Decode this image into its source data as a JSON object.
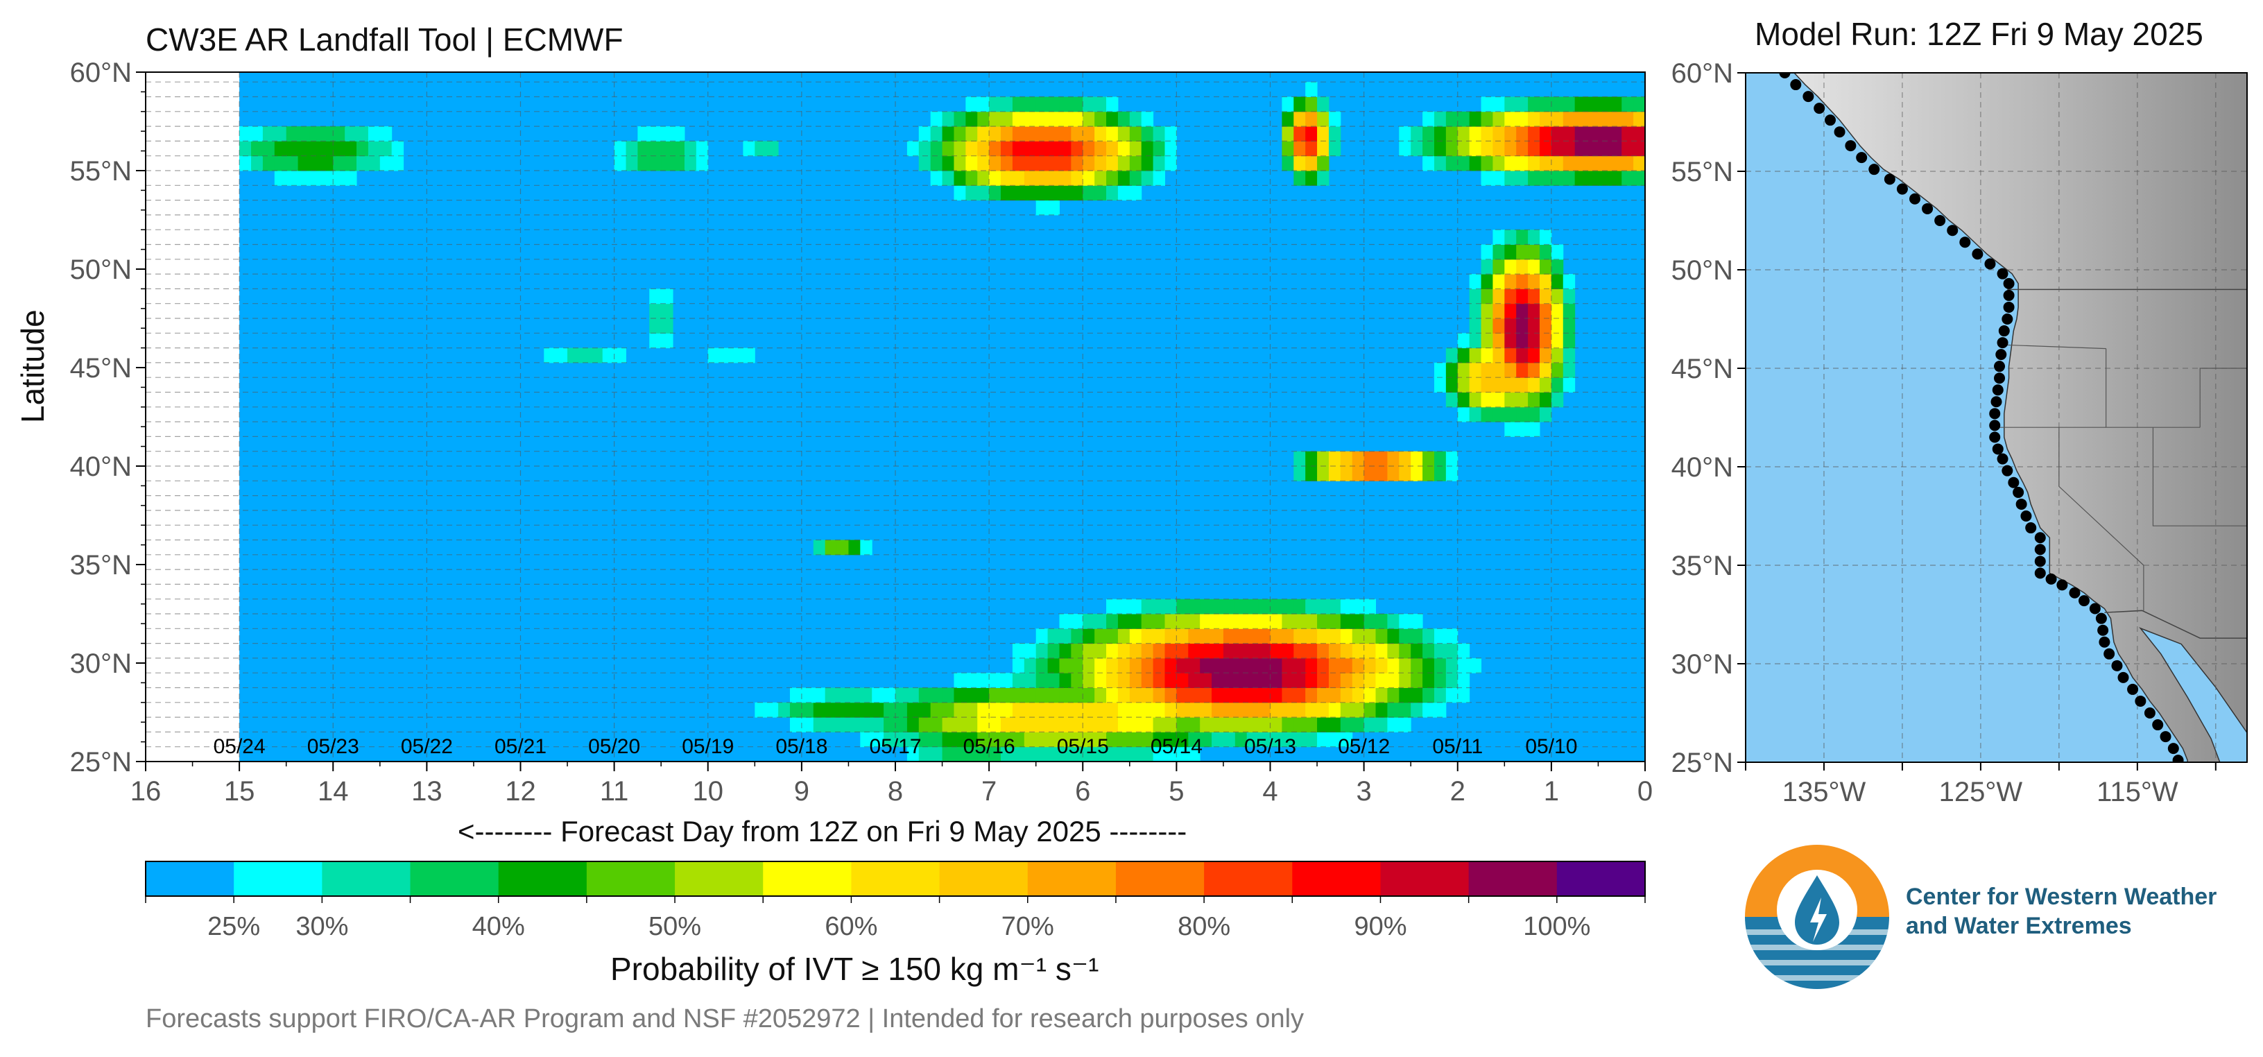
{
  "header": {
    "title": "CW3E AR Landfall Tool | ECMWF",
    "model_run": "Model Run: 12Z Fri 9 May 2025"
  },
  "axes": {
    "ylabel": "Latitude",
    "xlabel": "<-------- Forecast Day from 12Z on Fri 9 May 2025 --------",
    "colorbar_label": "Probability of IVT ≥ 150 kg m⁻¹ s⁻¹"
  },
  "footer": "Forecasts support FIRO/CA-AR Program and NSF #2052972 | Intended for research purposes only",
  "logo": {
    "line1": "Center for Western Weather",
    "line2": "and Water Extremes"
  },
  "chart_data": [
    {
      "type": "heatmap",
      "title": "CW3E AR Landfall Tool | ECMWF",
      "xlabel": "<-------- Forecast Day from 12Z on Fri 9 May 2025 --------",
      "ylabel": "Latitude",
      "xlim": [
        16,
        0
      ],
      "ylim": [
        25,
        60
      ],
      "x_ticks": [
        16,
        15,
        14,
        13,
        12,
        11,
        10,
        9,
        8,
        7,
        6,
        5,
        4,
        3,
        2,
        1,
        0
      ],
      "y_ticks": [
        "25°N",
        "30°N",
        "35°N",
        "40°N",
        "45°N",
        "50°N",
        "55°N",
        "60°N"
      ],
      "date_labels": [
        {
          "day": 15,
          "label": "05/24"
        },
        {
          "day": 14,
          "label": "05/23"
        },
        {
          "day": 13,
          "label": "05/22"
        },
        {
          "day": 12,
          "label": "05/21"
        },
        {
          "day": 11,
          "label": "05/20"
        },
        {
          "day": 10,
          "label": "05/19"
        },
        {
          "day": 9,
          "label": "05/18"
        },
        {
          "day": 8,
          "label": "05/17"
        },
        {
          "day": 7,
          "label": "05/16"
        },
        {
          "day": 6,
          "label": "05/15"
        },
        {
          "day": 5,
          "label": "05/14"
        },
        {
          "day": 4,
          "label": "05/13"
        },
        {
          "day": 3,
          "label": "05/12"
        },
        {
          "day": 2,
          "label": "05/11"
        },
        {
          "day": 1,
          "label": "05/10"
        }
      ],
      "background_probability": 20,
      "blobs": [
        {
          "day": 14.2,
          "lat": 56.0,
          "sx": 0.9,
          "sy": 1.4,
          "peak": 45
        },
        {
          "day": 10.5,
          "lat": 55.8,
          "sx": 0.6,
          "sy": 1.2,
          "peak": 40
        },
        {
          "day": 9.4,
          "lat": 56.0,
          "sx": 0.3,
          "sy": 0.8,
          "peak": 32
        },
        {
          "day": 6.4,
          "lat": 56.0,
          "sx": 0.9,
          "sy": 1.8,
          "peak": 90
        },
        {
          "day": 3.6,
          "lat": 56.6,
          "sx": 0.2,
          "sy": 1.6,
          "peak": 90
        },
        {
          "day": 0.5,
          "lat": 56.5,
          "sx": 1.3,
          "sy": 1.4,
          "peak": 100
        },
        {
          "day": 1.3,
          "lat": 47.0,
          "sx": 0.35,
          "sy": 3.2,
          "peak": 100
        },
        {
          "day": 1.6,
          "lat": 44.5,
          "sx": 0.45,
          "sy": 1.6,
          "peak": 72
        },
        {
          "day": 2.9,
          "lat": 40.0,
          "sx": 0.6,
          "sy": 0.7,
          "peak": 88
        },
        {
          "day": 11.3,
          "lat": 45.5,
          "sx": 0.7,
          "sy": 0.6,
          "peak": 32
        },
        {
          "day": 10.5,
          "lat": 47.5,
          "sx": 0.2,
          "sy": 1.8,
          "peak": 35
        },
        {
          "day": 9.8,
          "lat": 45.6,
          "sx": 0.4,
          "sy": 0.4,
          "peak": 30
        },
        {
          "day": 8.6,
          "lat": 35.9,
          "sx": 0.25,
          "sy": 0.4,
          "peak": 50
        },
        {
          "day": 4.3,
          "lat": 29.6,
          "sx": 1.5,
          "sy": 2.4,
          "peak": 100
        },
        {
          "day": 6.2,
          "lat": 27.2,
          "sx": 1.8,
          "sy": 1.6,
          "peak": 65
        },
        {
          "day": 8.5,
          "lat": 27.6,
          "sx": 0.9,
          "sy": 0.9,
          "peak": 45
        },
        {
          "day": 7.2,
          "lat": 25.6,
          "sx": 0.7,
          "sy": 0.7,
          "peak": 42
        }
      ]
    },
    {
      "type": "colorbar",
      "label": "Probability of IVT ≥ 150 kg m⁻¹ s⁻¹",
      "colors": [
        "#00aaff",
        "#00ffff",
        "#00e0aa",
        "#00cc55",
        "#00aa00",
        "#55cc00",
        "#aae000",
        "#ffff00",
        "#ffe000",
        "#ffc800",
        "#ffa500",
        "#ff7800",
        "#ff3c00",
        "#ff0000",
        "#cc0022",
        "#8c0050",
        "#550088"
      ],
      "tick_labels": [
        "25%",
        "30%",
        "40%",
        "50%",
        "60%",
        "70%",
        "80%",
        "90%",
        "100%"
      ],
      "tick_values": [
        25,
        30,
        40,
        50,
        60,
        70,
        80,
        90,
        100
      ]
    },
    {
      "type": "map",
      "lon_ticks": [
        "135°W",
        "125°W",
        "115°W"
      ],
      "lat_ticks": [
        "25°N",
        "30°N",
        "35°N",
        "40°N",
        "45°N",
        "50°N",
        "55°N",
        "60°N"
      ],
      "ocean_color": "#87cbf5",
      "landfall_points": [
        [
          -137.5,
          60.0
        ],
        [
          -136.8,
          59.4
        ],
        [
          -136.0,
          58.8
        ],
        [
          -135.3,
          58.2
        ],
        [
          -134.6,
          57.6
        ],
        [
          -134.0,
          57.0
        ],
        [
          -133.3,
          56.3
        ],
        [
          -132.6,
          55.7
        ],
        [
          -131.8,
          55.1
        ],
        [
          -130.8,
          54.6
        ],
        [
          -130.0,
          54.1
        ],
        [
          -129.2,
          53.6
        ],
        [
          -128.4,
          53.1
        ],
        [
          -127.6,
          52.5
        ],
        [
          -126.8,
          52.0
        ],
        [
          -126.0,
          51.4
        ],
        [
          -125.2,
          50.8
        ],
        [
          -124.4,
          50.3
        ],
        [
          -123.6,
          49.8
        ],
        [
          -123.2,
          49.3
        ],
        [
          -123.2,
          48.7
        ],
        [
          -123.2,
          48.1
        ],
        [
          -123.3,
          47.5
        ],
        [
          -123.5,
          46.9
        ],
        [
          -123.6,
          46.3
        ],
        [
          -123.7,
          45.7
        ],
        [
          -123.8,
          45.1
        ],
        [
          -123.8,
          44.5
        ],
        [
          -123.9,
          43.9
        ],
        [
          -124.0,
          43.3
        ],
        [
          -124.1,
          42.7
        ],
        [
          -124.1,
          42.1
        ],
        [
          -124.1,
          41.5
        ],
        [
          -123.9,
          40.9
        ],
        [
          -123.6,
          40.4
        ],
        [
          -123.3,
          39.8
        ],
        [
          -122.9,
          39.2
        ],
        [
          -122.6,
          38.7
        ],
        [
          -122.4,
          38.1
        ],
        [
          -122.1,
          37.5
        ],
        [
          -121.8,
          36.9
        ],
        [
          -121.2,
          36.4
        ],
        [
          -121.2,
          35.8
        ],
        [
          -121.2,
          35.2
        ],
        [
          -121.2,
          34.6
        ],
        [
          -120.5,
          34.3
        ],
        [
          -119.8,
          34.0
        ],
        [
          -119.0,
          33.6
        ],
        [
          -118.4,
          33.2
        ],
        [
          -117.7,
          32.8
        ],
        [
          -117.3,
          32.3
        ],
        [
          -117.2,
          31.7
        ],
        [
          -117.1,
          31.1
        ],
        [
          -116.8,
          30.5
        ],
        [
          -116.3,
          29.9
        ],
        [
          -115.9,
          29.3
        ],
        [
          -115.3,
          28.7
        ],
        [
          -114.8,
          28.1
        ],
        [
          -114.2,
          27.5
        ],
        [
          -113.7,
          26.9
        ],
        [
          -113.2,
          26.3
        ],
        [
          -112.7,
          25.7
        ],
        [
          -112.4,
          25.1
        ],
        [
          -112.4,
          24.6
        ]
      ]
    }
  ]
}
